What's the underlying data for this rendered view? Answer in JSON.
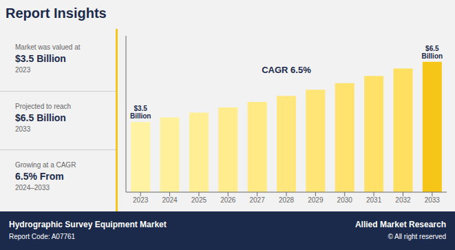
{
  "chart_data": {
    "type": "bar",
    "title": "Report Insights",
    "categories": [
      "2023",
      "2024",
      "2025",
      "2026",
      "2027",
      "2028",
      "2029",
      "2030",
      "2031",
      "2032",
      "2033"
    ],
    "values": [
      3.5,
      3.73,
      3.97,
      4.23,
      4.5,
      4.8,
      5.11,
      5.44,
      5.8,
      6.17,
      6.5
    ],
    "colors": [
      "#FFF3A3",
      "#FFF09B",
      "#FFEE94",
      "#FFEC8C",
      "#FFEA85",
      "#FFE77D",
      "#FFE576",
      "#FFE36E",
      "#FFE167",
      "#FFDF60",
      "#F5C518"
    ],
    "ylim": [
      0,
      7.8
    ],
    "grid": false,
    "tick_labels": "x",
    "annotations": [
      {
        "text": "$3.5\nBillion",
        "category": "2023"
      },
      {
        "text": "$6.5\nBillion",
        "category": "2033"
      },
      {
        "text": "CAGR 6.5%"
      }
    ],
    "side_panel": [
      [
        "Market was valued at",
        "$3.5 Billion",
        "2023"
      ],
      [
        "Projected to reach",
        "$6.5 Billion",
        "2033"
      ],
      [
        "Growing at a CAGR",
        "6.5% From",
        "2024–2033"
      ]
    ],
    "footer": {
      "left": [
        "Hydrographic Survey Equipment Market",
        "Report Code: A07761"
      ],
      "right": [
        "Allied Market Research",
        "© All right reserved"
      ]
    }
  }
}
